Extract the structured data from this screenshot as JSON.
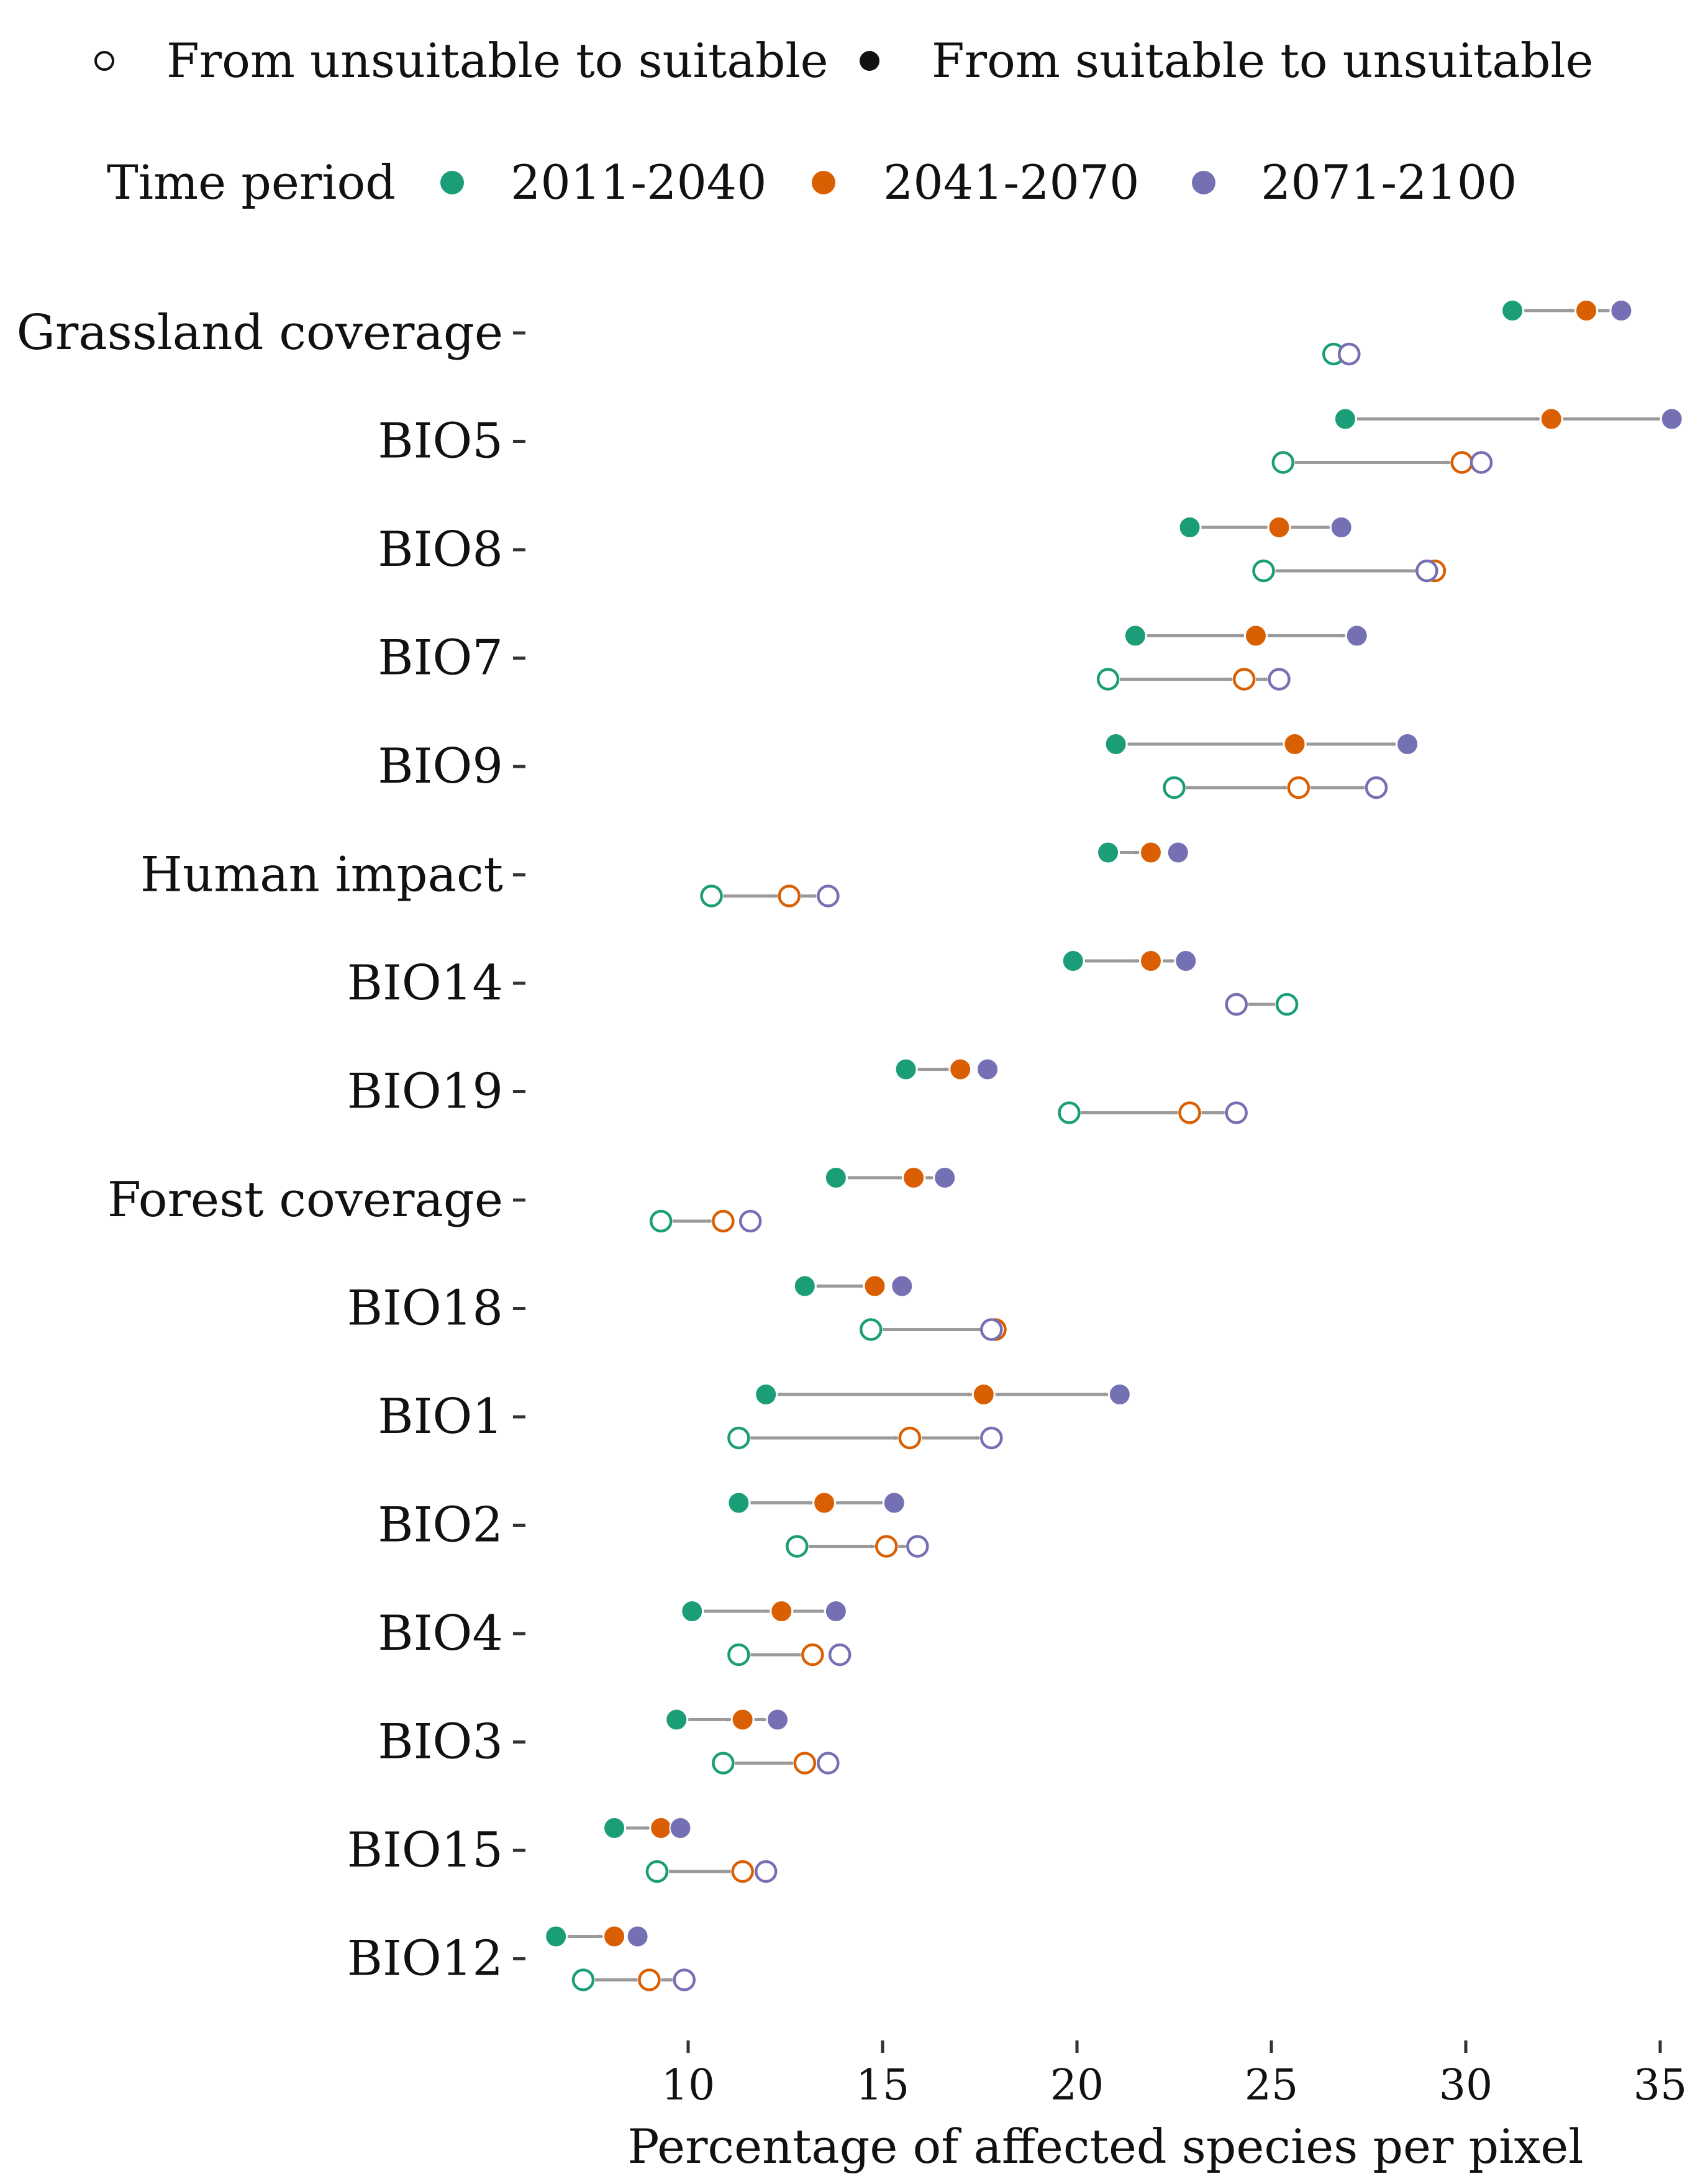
{
  "chart_data": {
    "type": "dot-arrow",
    "xlabel": "Percentage of affected species per pixel",
    "xlim": [
      6,
      35.3
    ],
    "xticks": [
      10,
      15,
      20,
      25,
      30,
      35
    ],
    "legend_shape": {
      "items": [
        {
          "label": "From unsuitable to suitable",
          "filled": false
        },
        {
          "label": "From suitable to unsuitable",
          "filled": true
        }
      ]
    },
    "legend_period": {
      "title": "Time period",
      "items": [
        {
          "label": "2011-2040",
          "color": "#1b9e77"
        },
        {
          "label": "2041-2070",
          "color": "#d95f02"
        },
        {
          "label": "2071-2100",
          "color": "#7570b3"
        }
      ]
    },
    "categories": [
      "Grassland coverage",
      "BIO5",
      "BIO8",
      "BIO7",
      "BIO9",
      "Human impact",
      "BIO14",
      "BIO19",
      "Forest coverage",
      "BIO18",
      "BIO1",
      "BIO2",
      "BIO4",
      "BIO3",
      "BIO15",
      "BIO12"
    ],
    "series": [
      {
        "name": "From suitable to unsuitable",
        "filled": true,
        "values": [
          [
            31.2,
            33.1,
            34.0
          ],
          [
            26.9,
            32.2,
            35.3
          ],
          [
            22.9,
            25.2,
            26.8
          ],
          [
            21.5,
            24.6,
            27.2
          ],
          [
            21.0,
            25.6,
            28.5
          ],
          [
            20.8,
            21.9,
            22.6
          ],
          [
            19.9,
            21.9,
            22.8
          ],
          [
            15.6,
            17.0,
            17.7
          ],
          [
            13.8,
            15.8,
            16.6
          ],
          [
            13.0,
            14.8,
            15.5
          ],
          [
            12.0,
            17.6,
            21.1
          ],
          [
            11.3,
            13.5,
            15.3
          ],
          [
            10.1,
            12.4,
            13.8
          ],
          [
            9.7,
            11.4,
            12.3
          ],
          [
            8.1,
            9.3,
            9.8
          ],
          [
            6.6,
            8.1,
            8.7
          ]
        ]
      },
      {
        "name": "From unsuitable to suitable",
        "filled": false,
        "values": [
          [
            26.6,
            27.0,
            27.0
          ],
          [
            25.3,
            29.9,
            30.4
          ],
          [
            24.8,
            29.2,
            29.0
          ],
          [
            20.8,
            24.3,
            25.2
          ],
          [
            22.5,
            25.7,
            27.7
          ],
          [
            10.6,
            12.6,
            13.6
          ],
          [
            25.4,
            24.1,
            24.1
          ],
          [
            19.8,
            22.9,
            24.1
          ],
          [
            9.3,
            10.9,
            11.6
          ],
          [
            14.7,
            17.9,
            17.8
          ],
          [
            11.3,
            15.7,
            17.8
          ],
          [
            12.8,
            15.1,
            15.9
          ],
          [
            11.3,
            13.2,
            13.9
          ],
          [
            10.9,
            13.0,
            13.6
          ],
          [
            9.2,
            11.4,
            12.0
          ],
          [
            7.3,
            9.0,
            9.9
          ]
        ]
      }
    ]
  }
}
